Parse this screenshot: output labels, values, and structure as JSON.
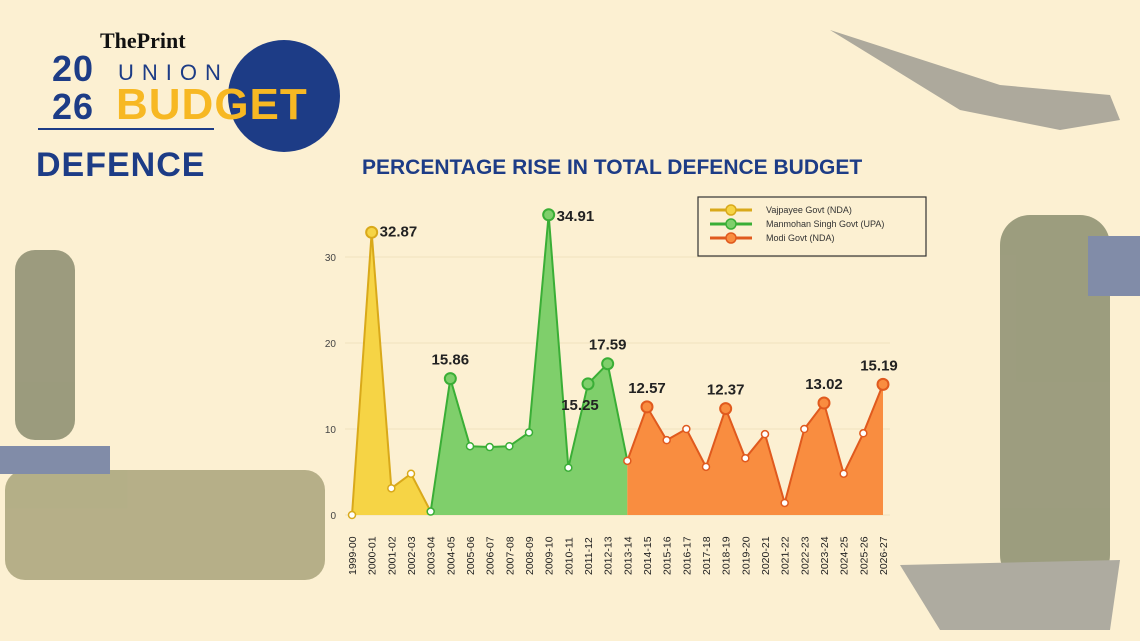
{
  "header": {
    "brand": "ThePrint",
    "year_top": "20",
    "year_bottom": "26",
    "union": "UNION",
    "budget": "BUDGET",
    "section": "DEFENCE"
  },
  "chart_data": {
    "type": "area",
    "title": "PERCENTAGE RISE IN TOTAL DEFENCE BUDGET",
    "xlabel": "",
    "ylabel": "",
    "ylim": [
      0,
      35
    ],
    "yticks": [
      0,
      10,
      20,
      30
    ],
    "grid": true,
    "legend_position": "top-right",
    "categories": [
      "1999-00",
      "2000-01",
      "2001-02",
      "2002-03",
      "2003-04",
      "2004-05",
      "2005-06",
      "2006-07",
      "2007-08",
      "2008-09",
      "2009-10",
      "2010-11",
      "2011-12",
      "2012-13",
      "2013-14",
      "2014-15",
      "2015-16",
      "2016-17",
      "2017-18",
      "2018-19",
      "2019-20",
      "2020-21",
      "2021-22",
      "2022-23",
      "2023-24",
      "2024-25",
      "2025-26",
      "2026-27"
    ],
    "values": [
      0,
      32.87,
      3.1,
      4.8,
      0.4,
      15.86,
      8.0,
      7.9,
      8.0,
      9.6,
      34.91,
      5.5,
      15.25,
      17.59,
      6.3,
      12.57,
      8.7,
      10.0,
      5.6,
      12.37,
      6.6,
      9.4,
      1.4,
      10.0,
      13.02,
      4.8,
      9.5,
      15.19
    ],
    "labeled_points": {
      "1": "32.87",
      "5": "15.86",
      "10": "34.91",
      "12": "15.25",
      "13": "17.59",
      "15": "12.57",
      "19": "12.37",
      "24": "13.02",
      "27": "15.19"
    },
    "series": [
      {
        "name": "Vajpayee Govt (NDA)",
        "start": "1999-00",
        "end": "2003-04",
        "fill": "#f6d445",
        "line": "#d9a91a"
      },
      {
        "name": "Manmohan Singh Govt (UPA)",
        "start": "2003-04",
        "end": "2013-14",
        "fill": "#7fcf6b",
        "line": "#3aae36"
      },
      {
        "name": "Modi Govt (NDA)",
        "start": "2013-14",
        "end": "2026-27",
        "fill": "#f98d40",
        "line": "#e05a1e"
      }
    ]
  }
}
